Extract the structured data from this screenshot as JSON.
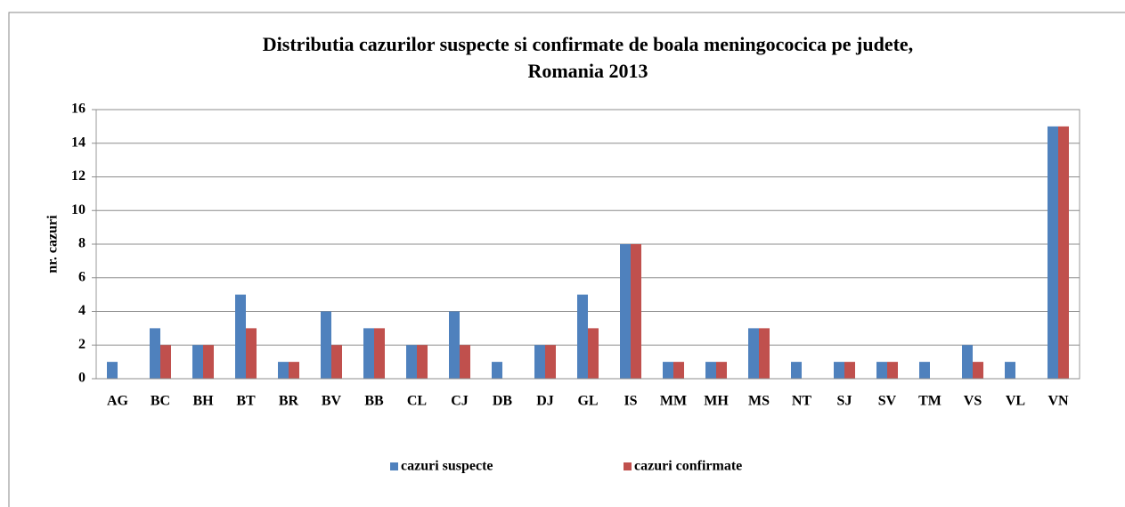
{
  "chart_data": {
    "type": "bar",
    "title": [
      "Distributia cazurilor suspecte si confirmate de boala meningococica pe judete,",
      "Romania 2013"
    ],
    "ylabel": "nr. cazuri",
    "categories": [
      "AG",
      "BC",
      "BH",
      "BT",
      "BR",
      "BV",
      "BB",
      "CL",
      "CJ",
      "DB",
      "DJ",
      "GL",
      "IS",
      "MM",
      "MH",
      "MS",
      "NT",
      "SJ",
      "SV",
      "TM",
      "VS",
      "VL",
      "VN"
    ],
    "series": [
      {
        "name": "cazuri suspecte",
        "color": "#4f81bd",
        "values": [
          1,
          3,
          2,
          5,
          1,
          4,
          3,
          2,
          4,
          1,
          2,
          5,
          8,
          1,
          1,
          3,
          1,
          1,
          1,
          1,
          2,
          1,
          15
        ]
      },
      {
        "name": "cazuri confirmate",
        "color": "#c0504d",
        "values": [
          0,
          2,
          2,
          3,
          1,
          2,
          3,
          2,
          2,
          0,
          2,
          3,
          8,
          1,
          1,
          3,
          0,
          1,
          1,
          0,
          1,
          0,
          15
        ]
      }
    ],
    "ylim": [
      0,
      16
    ],
    "yticks": [
      0,
      2,
      4,
      6,
      8,
      10,
      12,
      14,
      16
    ],
    "grid": true,
    "legend": "bottom"
  }
}
